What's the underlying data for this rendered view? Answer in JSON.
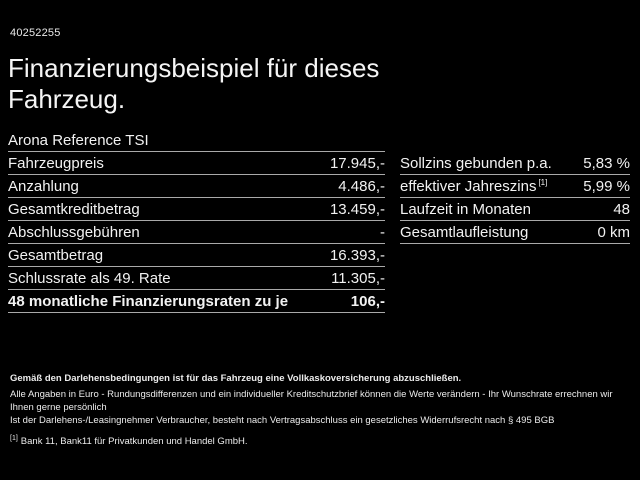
{
  "header": {
    "id_number": "40252255",
    "title": "Finanzierungsbeispiel für dieses Fahrzeug."
  },
  "vehicle": {
    "model": "Arona Reference TSI"
  },
  "finance_table": {
    "rows": [
      {
        "label": "Fahrzeugpreis",
        "value": "17.945,-"
      },
      {
        "label": "Anzahlung",
        "value": "4.486,-"
      },
      {
        "label": "Gesamtkreditbetrag",
        "value": "13.459,-"
      },
      {
        "label": "Abschlussgebühren",
        "value": "-"
      },
      {
        "label": "Gesamtbetrag",
        "value": "16.393,-"
      },
      {
        "label": "Schlussrate als 49. Rate",
        "value": "11.305,-"
      }
    ],
    "highlight_row": {
      "label": "48 monatliche Finanzierungsraten zu je",
      "value": "106,-"
    }
  },
  "conditions_table": {
    "rows": [
      {
        "label": "Sollzins gebunden p.a.",
        "sup": "",
        "value": "5,83 %"
      },
      {
        "label": "effektiver Jahreszins",
        "sup": "[1]",
        "value": "5,99 %"
      },
      {
        "label": "Laufzeit in Monaten",
        "sup": "",
        "value": "48"
      },
      {
        "label": "Gesamtlaufleistung",
        "sup": "",
        "value": "0 km"
      }
    ]
  },
  "footer": {
    "bold_note": "Gemäß den Darlehensbedingungen ist für das Fahrzeug eine Vollkaskoversicherung abzuschließen.",
    "note_line1": "Alle Angaben in Euro - Rundungsdifferenzen und ein individueller Kreditschutzbrief können die Werte verändern - Ihr Wunschrate errechnen wir Ihnen gerne persönlich",
    "note_line2": "Ist der Darlehens-/Leasingnehmer Verbraucher, besteht nach Vertragsabschluss ein gesetzliches Widerrufsrecht nach § 495 BGB",
    "footnote_marker": "[1]",
    "footnote_text": "Bank 11, Bank11 für Privatkunden und Handel GmbH."
  },
  "colors": {
    "background": "#000000",
    "text": "#f2f2f2",
    "divider": "#a9a9a9"
  }
}
